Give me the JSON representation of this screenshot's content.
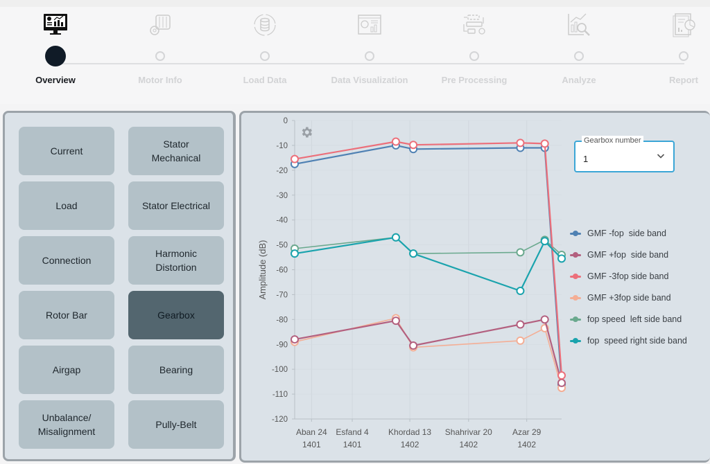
{
  "stepper": {
    "steps": [
      {
        "label": "Overview",
        "icon": "monitor-dashboard-icon",
        "active": true
      },
      {
        "label": "Motor Info",
        "icon": "motor-gear-icon",
        "active": false
      },
      {
        "label": "Load Data",
        "icon": "database-sync-icon",
        "active": false
      },
      {
        "label": "Data Visualization",
        "icon": "chart-window-icon",
        "active": false
      },
      {
        "label": "Pre Processing",
        "icon": "workflow-icon",
        "active": false
      },
      {
        "label": "Analyze",
        "icon": "chart-search-icon",
        "active": false
      },
      {
        "label": "Report",
        "icon": "report-pie-icon",
        "active": false
      }
    ]
  },
  "categories": [
    {
      "label": "Current",
      "active": false
    },
    {
      "label": "Stator Mechanical",
      "active": false
    },
    {
      "label": "Load",
      "active": false
    },
    {
      "label": "Stator Electrical",
      "active": false
    },
    {
      "label": "Connection",
      "active": false
    },
    {
      "label": "Harmonic Distortion",
      "active": false
    },
    {
      "label": "Rotor Bar",
      "active": false
    },
    {
      "label": "Gearbox",
      "active": true
    },
    {
      "label": "Airgap",
      "active": false
    },
    {
      "label": "Bearing",
      "active": false
    },
    {
      "label": "Unbalance/ Misalignment",
      "active": false
    },
    {
      "label": "Pully-Belt",
      "active": false
    }
  ],
  "gearbox_select": {
    "label": "Gearbox number",
    "value": "1"
  },
  "chart_data": {
    "type": "line",
    "title": "",
    "ylabel": "Amplitude (dB)",
    "xlabel": "",
    "ylim": [
      -120,
      0
    ],
    "yticks": [
      0,
      -10,
      -20,
      -30,
      -40,
      -50,
      -60,
      -70,
      -80,
      -90,
      -100,
      -110,
      -120
    ],
    "xlim": [
      -29,
      430
    ],
    "xunit": "days since Aban 24 1401",
    "xticks": [
      {
        "value": 0,
        "line1": "Aban 24",
        "line2": "1401"
      },
      {
        "value": 70,
        "line1": "Esfand 4",
        "line2": "1401"
      },
      {
        "value": 169,
        "line1": "Khordad 13",
        "line2": "1402"
      },
      {
        "value": 270,
        "line1": "Shahrivar 20",
        "line2": "1402"
      },
      {
        "value": 370,
        "line1": "Azar 29",
        "line2": "1402"
      }
    ],
    "grid": true,
    "legend_position": "right",
    "x": [
      -29,
      145,
      175,
      359,
      401,
      430
    ],
    "series": [
      {
        "name": "GMF -fop  side band",
        "color": "#4f81b3",
        "values": [
          -17.5,
          -10,
          -11.5,
          -11,
          -11,
          -106
        ]
      },
      {
        "name": "GMF +fop  side band",
        "color": "#b3607f",
        "values": [
          -88,
          -80.5,
          -90.5,
          -82,
          -80,
          -105.5
        ]
      },
      {
        "name": "GMF -3fop side band",
        "color": "#ec6f7a",
        "values": [
          -15.5,
          -8.5,
          -9.8,
          -9,
          -9.3,
          -102.5
        ]
      },
      {
        "name": "GMF +3fop side band",
        "color": "#f4ae95",
        "values": [
          -89,
          -79.5,
          -91.2,
          -88.5,
          -83.5,
          -107.5
        ]
      },
      {
        "name": "fop speed  left side band",
        "color": "#6aa98e",
        "values": [
          -51.5,
          -47,
          -53.5,
          -53,
          -48,
          -54
        ]
      },
      {
        "name": "fop  speed right side band",
        "color": "#1aa3ad",
        "values": [
          -53.5,
          -47,
          -53.5,
          -68.5,
          -48.5,
          -55.5
        ]
      }
    ]
  }
}
